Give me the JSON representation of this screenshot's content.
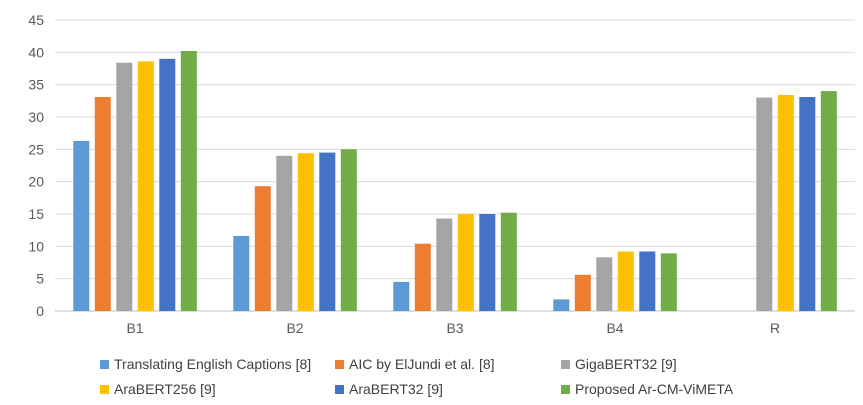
{
  "chart_data": {
    "type": "bar",
    "categories": [
      "B1",
      "B2",
      "B3",
      "B4",
      "R"
    ],
    "y_ticks": [
      "0",
      "5",
      "10",
      "15",
      "20",
      "25",
      "30",
      "35",
      "40",
      "45"
    ],
    "ylim": [
      0,
      45
    ],
    "grid": true,
    "legend_position": "bottom",
    "series": [
      {
        "name": "Translating English Captions [8]",
        "color": "#5B9BD5",
        "values": [
          26.3,
          11.6,
          4.5,
          1.8,
          null
        ]
      },
      {
        "name": "AIC by ElJundi et al. [8]",
        "color": "#ED7D31",
        "values": [
          33.1,
          19.3,
          10.4,
          5.6,
          null
        ]
      },
      {
        "name": "GigaBERT32 [9]",
        "color": "#A5A5A5",
        "values": [
          38.4,
          24.0,
          14.3,
          8.3,
          33.0
        ]
      },
      {
        "name": "AraBERT256 [9]",
        "color": "#FFC000",
        "values": [
          38.6,
          24.4,
          15.0,
          9.2,
          33.4
        ]
      },
      {
        "name": "AraBERT32 [9]",
        "color": "#4472C4",
        "values": [
          39.0,
          24.5,
          15.0,
          9.2,
          33.1
        ]
      },
      {
        "name": "Proposed Ar-CM-ViMETA",
        "color": "#70AD47",
        "values": [
          40.2,
          25.0,
          15.2,
          8.9,
          34.0
        ]
      }
    ]
  }
}
